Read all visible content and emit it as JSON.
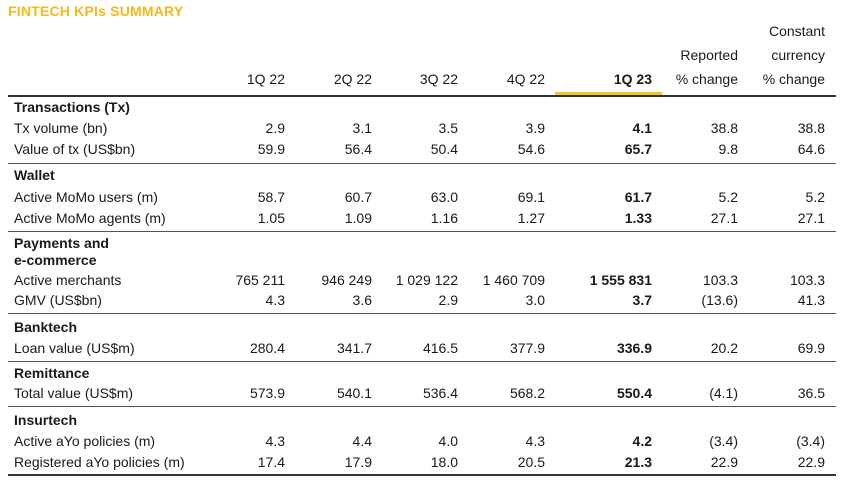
{
  "title": "FINTECH KPIs SUMMARY",
  "headers": {
    "q1_22": "1Q 22",
    "q2_22": "2Q 22",
    "q3_22": "3Q 22",
    "q4_22": "4Q 22",
    "q1_23": "1Q 23",
    "reported": [
      "Reported",
      "% change"
    ],
    "constant": [
      "Constant",
      "currency",
      "% change"
    ]
  },
  "sections": [
    {
      "name": "Transactions (Tx)",
      "rows": [
        {
          "label": "Tx volume (bn)",
          "values": [
            "2.9",
            "3.1",
            "3.5",
            "3.9",
            "4.1",
            "38.8",
            "38.8"
          ]
        },
        {
          "label": "Value of tx (US$bn)",
          "values": [
            "59.9",
            "56.4",
            "50.4",
            "54.6",
            "65.7",
            "9.8",
            "64.6"
          ]
        }
      ]
    },
    {
      "name": "Wallet",
      "rows": [
        {
          "label": "Active MoMo users (m)",
          "values": [
            "58.7",
            "60.7",
            "63.0",
            "69.1",
            "61.7",
            "5.2",
            "5.2"
          ]
        },
        {
          "label": "Active MoMo agents (m)",
          "values": [
            "1.05",
            "1.09",
            "1.16",
            "1.27",
            "1.33",
            "27.1",
            "27.1"
          ]
        }
      ]
    },
    {
      "name": "Payments and e-commerce",
      "name_lines": [
        "Payments and",
        "e-commerce"
      ],
      "rows": [
        {
          "label": "Active merchants",
          "values": [
            "765 211",
            "946 249",
            "1 029 122",
            "1 460 709",
            "1 555 831",
            "103.3",
            "103.3"
          ]
        },
        {
          "label": "GMV (US$bn)",
          "values": [
            "4.3",
            "3.6",
            "2.9",
            "3.0",
            "3.7",
            "(13.6)",
            "41.3"
          ]
        }
      ]
    },
    {
      "name": "Banktech",
      "rows": [
        {
          "label": "Loan value (US$m)",
          "values": [
            "280.4",
            "341.7",
            "416.5",
            "377.9",
            "336.9",
            "20.2",
            "69.9"
          ]
        }
      ]
    },
    {
      "name": "Remittance",
      "rows": [
        {
          "label": "Total value (US$m)",
          "values": [
            "573.9",
            "540.1",
            "536.4",
            "568.2",
            "550.4",
            "(4.1)",
            "36.5"
          ]
        }
      ]
    },
    {
      "name": "Insurtech",
      "rows": [
        {
          "label": "Active aYo policies (m)",
          "values": [
            "4.3",
            "4.4",
            "4.0",
            "4.3",
            "4.2",
            "(3.4)",
            "(3.4)"
          ]
        },
        {
          "label": "Registered aYo policies (m)",
          "values": [
            "17.4",
            "17.9",
            "18.0",
            "20.5",
            "21.3",
            "22.9",
            "22.9"
          ]
        }
      ]
    }
  ]
}
